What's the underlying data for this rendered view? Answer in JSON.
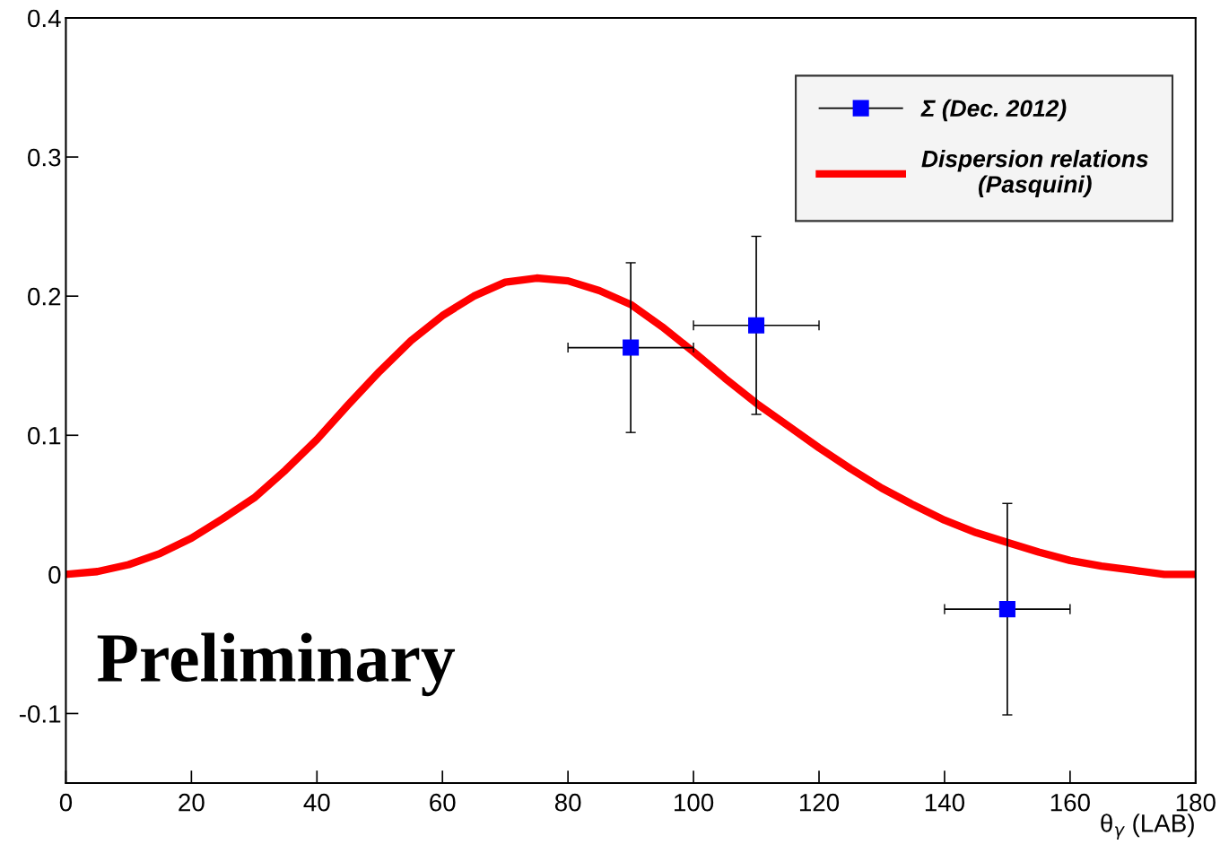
{
  "chart_data": {
    "type": "line",
    "xlabel": "θ$_{γ}$ (LAB)",
    "xlim": [
      0,
      180
    ],
    "xticks": [
      0,
      20,
      40,
      60,
      80,
      100,
      120,
      140,
      160,
      180
    ],
    "ylim": [
      -0.15,
      0.4
    ],
    "yticks": [
      -0.1,
      0,
      0.1,
      0.2,
      0.3,
      0.4
    ],
    "grid": false,
    "legend": "top right",
    "annotations": [
      "Preliminary"
    ],
    "series": [
      {
        "name": "Σ (Dec. 2012)",
        "type": "scatter",
        "color": "#0000ff",
        "marker": "square",
        "x": [
          90,
          110,
          150
        ],
        "values": [
          0.163,
          0.179,
          -0.025
        ],
        "errors": [
          0.061,
          0.064,
          0.076
        ],
        "xerrors": [
          10,
          10,
          10
        ]
      },
      {
        "name": "Dispersion relations\n(Pasquini)",
        "color": "#ff0000",
        "marker": "none",
        "line_style": "solid",
        "x": [
          0,
          5,
          10,
          15,
          20,
          25,
          30,
          35,
          40,
          45,
          50,
          55,
          60,
          65,
          70,
          75,
          80,
          85,
          90,
          95,
          100,
          105,
          110,
          115,
          120,
          125,
          130,
          135,
          140,
          145,
          150,
          155,
          160,
          165,
          170,
          175,
          180
        ],
        "values": [
          0.0,
          0.002,
          0.007,
          0.015,
          0.026,
          0.04,
          0.055,
          0.075,
          0.097,
          0.122,
          0.146,
          0.168,
          0.186,
          0.2,
          0.21,
          0.213,
          0.211,
          0.204,
          0.194,
          0.178,
          0.16,
          0.141,
          0.123,
          0.107,
          0.091,
          0.076,
          0.062,
          0.05,
          0.039,
          0.03,
          0.023,
          0.016,
          0.01,
          0.006,
          0.003,
          0.0,
          0.0
        ]
      }
    ]
  }
}
